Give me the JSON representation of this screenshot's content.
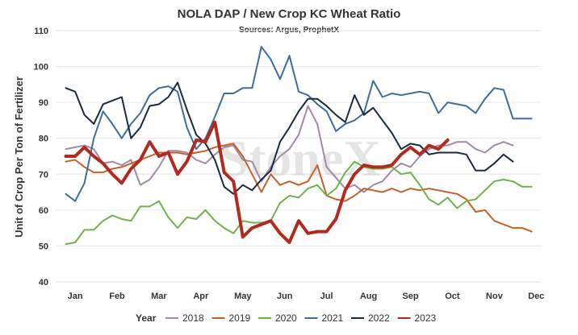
{
  "chart_data": {
    "type": "line",
    "title": "NOLA DAP / New Crop KC Wheat Ratio",
    "subtitle": "Sources: Argus, ProphetX",
    "ylabel": "Unit of Crop Per Ton of Fertilizer",
    "xlabel": "",
    "ylim": [
      40,
      110
    ],
    "yticks": [
      40,
      50,
      60,
      70,
      80,
      90,
      100,
      110
    ],
    "xlim": [
      0,
      52
    ],
    "months": [
      {
        "label": "Jan",
        "week": 2
      },
      {
        "label": "Feb",
        "week": 6.5
      },
      {
        "label": "Mar",
        "week": 11
      },
      {
        "label": "Apr",
        "week": 15.5
      },
      {
        "label": "May",
        "week": 20
      },
      {
        "label": "Jun",
        "week": 24.5
      },
      {
        "label": "Jul",
        "week": 29
      },
      {
        "label": "Aug",
        "week": 33.5
      },
      {
        "label": "Sep",
        "week": 38
      },
      {
        "label": "Oct",
        "week": 42.5
      },
      {
        "label": "Nov",
        "week": 47
      },
      {
        "label": "Dec",
        "week": 51.5
      }
    ],
    "grid": true,
    "legend_title": "Year",
    "legend_position": "bottom",
    "watermark": "StoneX",
    "series": [
      {
        "name": "2018",
        "color": "#a08aa8",
        "width": 2,
        "x": [
          1,
          2,
          3,
          4,
          5,
          6,
          7,
          8,
          9,
          10,
          11,
          12,
          13,
          14,
          15,
          16,
          17,
          18,
          19,
          20,
          21,
          22,
          23,
          24,
          25,
          26,
          27,
          28,
          29,
          30,
          31,
          32,
          33,
          34,
          35,
          36,
          37,
          38,
          39,
          40,
          41,
          42,
          43,
          44,
          45,
          46,
          47,
          48,
          49
        ],
        "y": [
          77,
          77.5,
          78,
          77,
          73,
          73.5,
          72.5,
          74,
          67,
          68.5,
          72,
          76.5,
          76.5,
          76,
          74,
          73,
          75.5,
          77.5,
          78,
          74,
          73.5,
          68,
          72,
          75,
          77,
          81,
          89,
          84,
          72,
          69,
          66,
          67,
          65,
          67,
          68,
          71,
          73,
          72,
          75,
          77,
          78,
          78,
          79,
          79,
          77,
          76,
          78,
          79,
          78
        ]
      },
      {
        "name": "2019",
        "color": "#c8602a",
        "width": 2,
        "x": [
          1,
          2,
          3,
          4,
          5,
          6,
          7,
          8,
          9,
          10,
          11,
          12,
          13,
          14,
          15,
          16,
          17,
          18,
          19,
          20,
          21,
          22,
          23,
          24,
          25,
          26,
          27,
          28,
          29,
          30,
          31,
          32,
          33,
          34,
          35,
          36,
          37,
          38,
          39,
          40,
          41,
          42,
          43,
          44,
          45,
          46,
          47,
          48,
          49,
          50,
          51
        ],
        "y": [
          73.5,
          74,
          72,
          70.5,
          70.5,
          71.5,
          72,
          73,
          74,
          75,
          76,
          76,
          76,
          75.5,
          76,
          76.5,
          77.5,
          78,
          78.5,
          75,
          70,
          65,
          70,
          67,
          68,
          67,
          68,
          72.5,
          64,
          63,
          62.5,
          64,
          66,
          65.5,
          65,
          66,
          65,
          66,
          65.5,
          66,
          65.5,
          65,
          64.5,
          63,
          59.5,
          60,
          57,
          56,
          55,
          55,
          54
        ]
      },
      {
        "name": "2020",
        "color": "#6db34a",
        "width": 2,
        "x": [
          1,
          2,
          3,
          4,
          5,
          6,
          7,
          8,
          9,
          10,
          11,
          12,
          13,
          14,
          15,
          16,
          17,
          18,
          19,
          20,
          21,
          22,
          23,
          24,
          25,
          26,
          27,
          28,
          29,
          30,
          31,
          32,
          33,
          34,
          35,
          36,
          37,
          38,
          39,
          40,
          41,
          42,
          43,
          44,
          45,
          46,
          47,
          48,
          49,
          50,
          51
        ],
        "y": [
          50.5,
          51,
          54.5,
          54.5,
          57,
          58.5,
          57.5,
          57,
          61,
          61,
          62.5,
          58,
          55,
          58,
          57.5,
          60,
          57,
          55,
          53.5,
          57,
          56.5,
          56.5,
          57,
          62,
          64,
          63.5,
          66,
          67,
          64,
          66,
          70.5,
          73.5,
          72,
          71.5,
          71.5,
          72,
          70,
          70.5,
          67,
          63,
          61.5,
          63.5,
          60.5,
          62.5,
          63,
          65.5,
          68,
          68.5,
          68,
          66.5,
          66.5
        ]
      },
      {
        "name": "2021",
        "color": "#3a6e9e",
        "width": 2,
        "x": [
          1,
          2,
          3,
          4,
          5,
          6,
          7,
          8,
          9,
          10,
          11,
          12,
          13,
          14,
          15,
          16,
          17,
          18,
          19,
          20,
          21,
          22,
          23,
          24,
          25,
          26,
          27,
          28,
          29,
          30,
          31,
          32,
          33,
          34,
          35,
          36,
          37,
          38,
          39,
          40,
          41,
          42,
          43,
          44,
          45,
          46,
          47,
          48,
          49,
          50,
          51
        ],
        "y": [
          64.5,
          62.5,
          67.5,
          80,
          87.5,
          84,
          80,
          84,
          87,
          92,
          94,
          94.5,
          93,
          83,
          77,
          80,
          86,
          92.5,
          92.5,
          94,
          94,
          105.5,
          102,
          96.5,
          103,
          93,
          92,
          89.5,
          87.5,
          82,
          84,
          85,
          87,
          96,
          91.5,
          92.5,
          92,
          92.5,
          93,
          92.5,
          87,
          90,
          89.5,
          89,
          87,
          91,
          94,
          93.5,
          85.5,
          85.5,
          85.5
        ]
      },
      {
        "name": "2022",
        "color": "#1a2a40",
        "width": 2,
        "x": [
          1,
          2,
          3,
          4,
          5,
          6,
          7,
          8,
          9,
          10,
          11,
          12,
          13,
          14,
          15,
          16,
          17,
          18,
          19,
          20,
          21,
          22,
          23,
          24,
          25,
          26,
          27,
          28,
          29,
          30,
          31,
          32,
          33,
          34,
          35,
          36,
          37,
          38,
          39,
          40,
          41,
          42,
          43,
          44,
          45,
          46,
          47,
          48,
          49
        ],
        "y": [
          94,
          93,
          86.5,
          84,
          89.5,
          90.5,
          91.5,
          80,
          83,
          89,
          89.5,
          91.5,
          95.5,
          88,
          81,
          78.5,
          74,
          66.5,
          64.5,
          67,
          65.5,
          68.5,
          71,
          79,
          83,
          87.5,
          91,
          91,
          89,
          86.5,
          84.5,
          92,
          86.5,
          88.5,
          85,
          81.5,
          77,
          78.5,
          78,
          75.5,
          76,
          76,
          76,
          75.5,
          71,
          71,
          73,
          75.5,
          73.5
        ]
      },
      {
        "name": "2023",
        "color": "#b22a1e",
        "width": 4,
        "x": [
          1,
          2,
          3,
          4,
          5,
          6,
          7,
          8,
          9,
          10,
          11,
          12,
          13,
          14,
          15,
          16,
          17,
          18,
          19,
          20,
          21,
          22,
          23,
          24,
          25,
          26,
          27,
          28,
          29,
          30,
          31,
          32,
          33,
          34,
          35,
          36,
          37,
          38,
          39,
          40,
          41,
          42
        ],
        "y": [
          75,
          75,
          77.5,
          75,
          73,
          70,
          67.5,
          71.5,
          74,
          79,
          75,
          76,
          70,
          73.5,
          79.5,
          79,
          84.5,
          70.5,
          68,
          52.5,
          55,
          56,
          57,
          53.5,
          51,
          57,
          53.5,
          54,
          54,
          57.5,
          65.5,
          70,
          72.5,
          72,
          72,
          72.5,
          75.5,
          77.5,
          75.5,
          78,
          77,
          79.5
        ]
      }
    ]
  }
}
